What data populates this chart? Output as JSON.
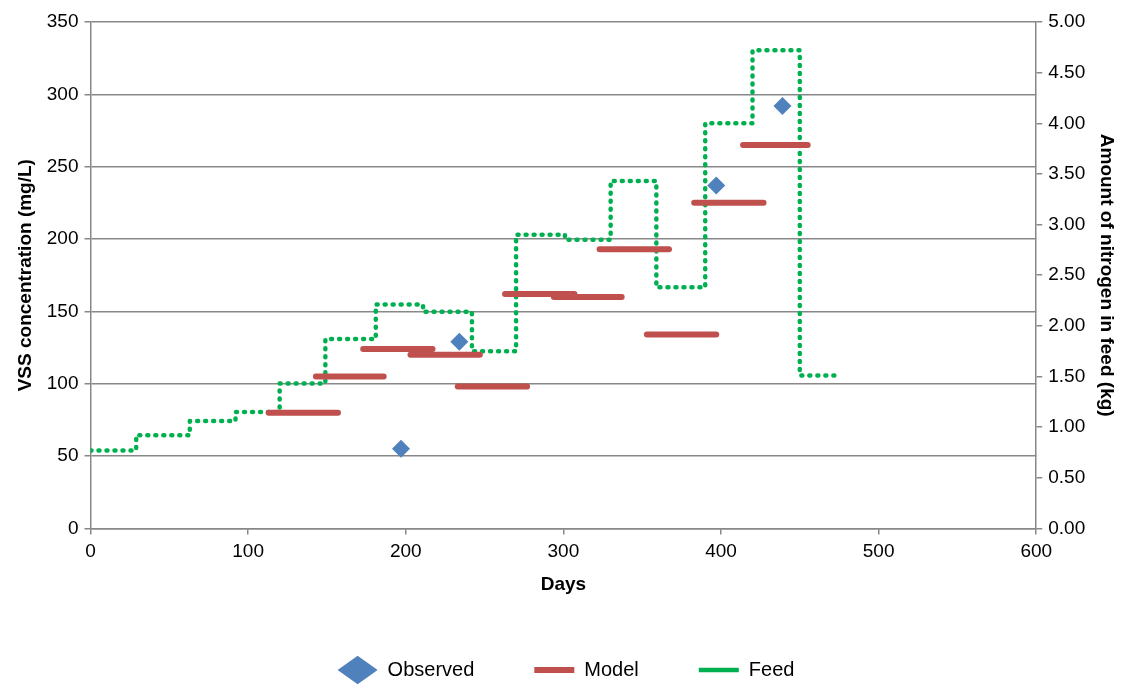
{
  "chart_data": {
    "type": "scatter",
    "xlabel": "Days",
    "ylabel": "VSS concentration (mg/L)",
    "y2label": "Amount of nitrogen in feed (kg)",
    "xlim": [
      0,
      600
    ],
    "xticks": [
      0,
      100,
      200,
      300,
      400,
      500,
      600
    ],
    "ylim": [
      0,
      350
    ],
    "yticks": [
      0,
      50,
      100,
      150,
      200,
      250,
      300,
      350
    ],
    "y2lim": [
      0,
      5
    ],
    "y2ticks": [
      {
        "value": 0,
        "label": "0.00"
      },
      {
        "value": 0.5,
        "label": "0.50"
      },
      {
        "value": 1,
        "label": "1.00"
      },
      {
        "value": 1.5,
        "label": "1.50"
      },
      {
        "value": 2,
        "label": "2.00"
      },
      {
        "value": 2.5,
        "label": "2.50"
      },
      {
        "value": 3,
        "label": "3.00"
      },
      {
        "value": 3.5,
        "label": "3.50"
      },
      {
        "value": 4,
        "label": "4.00"
      },
      {
        "value": 4.5,
        "label": "4.50"
      },
      {
        "value": 5,
        "label": "5.00"
      }
    ],
    "grid": "y",
    "legend": "bottom",
    "series": [
      {
        "name": "Observed",
        "marker": "diamond",
        "color": "#4f81bd",
        "x": [
          197,
          234,
          397,
          439
        ],
        "values": [
          55,
          129,
          237,
          292
        ]
      },
      {
        "name": "Model",
        "type": "line",
        "marker": "none",
        "line_style": "solid",
        "color": "#c0504d",
        "x": [
          113,
          157
        ],
        "values": [
          80,
          80
        ]
      },
      {
        "type": "line",
        "marker": "none",
        "line_style": "solid",
        "color": "#c0504d",
        "x": [
          143,
          186
        ],
        "values": [
          105,
          105
        ]
      },
      {
        "type": "line",
        "marker": "none",
        "line_style": "solid",
        "color": "#c0504d",
        "x": [
          173,
          217
        ],
        "values": [
          124,
          124
        ]
      },
      {
        "type": "line",
        "marker": "none",
        "line_style": "solid",
        "color": "#c0504d",
        "x": [
          203,
          247
        ],
        "values": [
          120,
          120
        ]
      },
      {
        "type": "line",
        "marker": "none",
        "line_style": "solid",
        "color": "#c0504d",
        "x": [
          233,
          277
        ],
        "values": [
          98,
          98
        ]
      },
      {
        "type": "line",
        "marker": "none",
        "line_style": "solid",
        "color": "#c0504d",
        "x": [
          263,
          307
        ],
        "values": [
          162,
          162
        ]
      },
      {
        "type": "line",
        "marker": "none",
        "line_style": "solid",
        "color": "#c0504d",
        "x": [
          294,
          337
        ],
        "values": [
          160,
          160
        ]
      },
      {
        "type": "line",
        "marker": "none",
        "line_style": "solid",
        "color": "#c0504d",
        "x": [
          323,
          367
        ],
        "values": [
          193,
          193
        ]
      },
      {
        "type": "line",
        "marker": "none",
        "line_style": "solid",
        "color": "#c0504d",
        "x": [
          353,
          397
        ],
        "values": [
          134,
          134
        ]
      },
      {
        "type": "line",
        "marker": "none",
        "line_style": "solid",
        "color": "#c0504d",
        "x": [
          383,
          427
        ],
        "values": [
          225,
          225
        ]
      },
      {
        "type": "line",
        "marker": "none",
        "line_style": "solid",
        "color": "#c0504d",
        "x": [
          414,
          455
        ],
        "values": [
          265,
          265
        ]
      },
      {
        "name": "Feed",
        "type": "step",
        "marker": "none",
        "line_style": "dotted",
        "axis": "y2",
        "color": "#00b050",
        "x": [
          0,
          29,
          63,
          92,
          120,
          149,
          181,
          211,
          242,
          270,
          301,
          330,
          359,
          390,
          420,
          450,
          476
        ],
        "values": [
          0.77,
          0.92,
          1.06,
          1.15,
          1.43,
          1.87,
          2.21,
          2.14,
          1.75,
          2.9,
          2.85,
          3.43,
          2.38,
          4.0,
          4.72,
          1.51,
          1.51
        ]
      }
    ]
  }
}
